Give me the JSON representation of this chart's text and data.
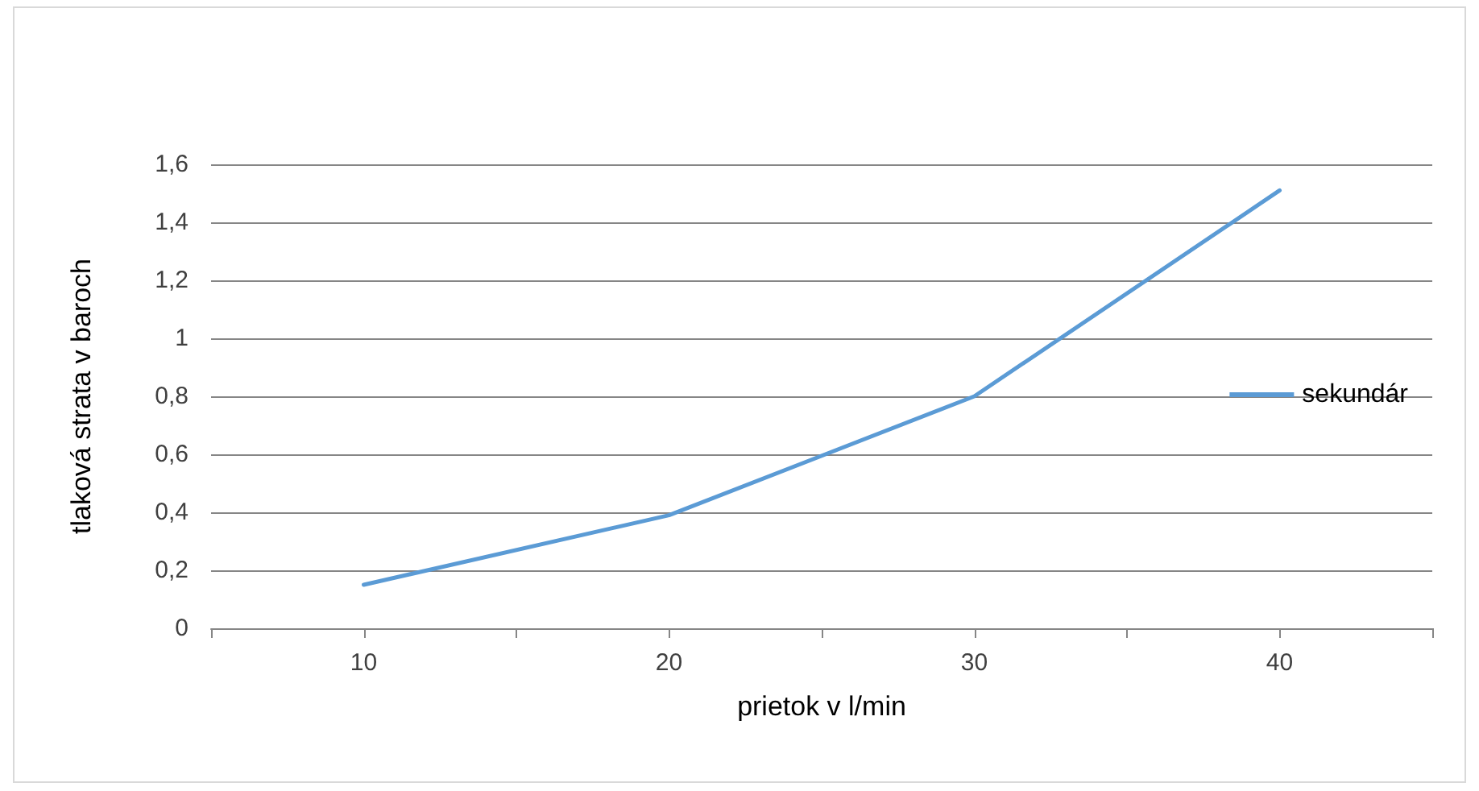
{
  "chart_data": {
    "type": "line",
    "xlabel": "prietok v l/min",
    "ylabel": "tlaková strata v baroch",
    "x": [
      10,
      20,
      30,
      40
    ],
    "series": [
      {
        "name": "sekundár",
        "color": "#5b9bd5",
        "values": [
          0.15,
          0.39,
          0.8,
          1.51
        ]
      }
    ],
    "xlim": [
      5,
      45
    ],
    "xticks": [
      {
        "value": 5,
        "label": null
      },
      10,
      {
        "value": 15,
        "label": null
      },
      20,
      {
        "value": 25,
        "label": null
      },
      30,
      {
        "value": 35,
        "label": null
      },
      40,
      {
        "value": 45,
        "label": null
      }
    ],
    "ylim": [
      0,
      1.6
    ],
    "yticks": [
      0,
      {
        "value": 0.2,
        "label": "0,2"
      },
      {
        "value": 0.4,
        "label": "0,4"
      },
      {
        "value": 0.6,
        "label": "0,6"
      },
      {
        "value": 0.8,
        "label": "0,8"
      },
      1,
      {
        "value": 1.2,
        "label": "1,2"
      },
      {
        "value": 1.4,
        "label": "1,4"
      },
      {
        "value": 1.6,
        "label": "1,6"
      }
    ],
    "grid": "y",
    "legend": "right",
    "marker": "none",
    "line_style": "solid"
  }
}
